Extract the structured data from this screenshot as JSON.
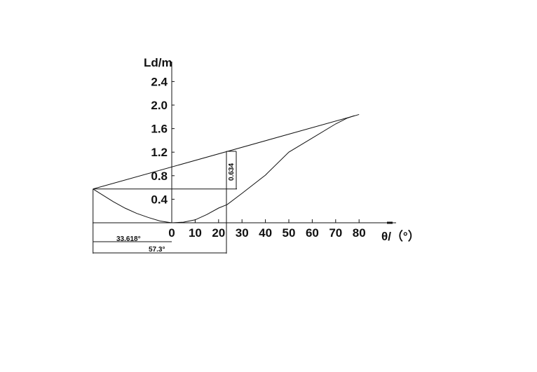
{
  "chart_data": {
    "type": "line",
    "ylabel": "Ld/m",
    "xlabel": "θ/（°）",
    "xlim": [
      -33.618,
      95
    ],
    "ylim": [
      0,
      2.6
    ],
    "x_ticks": [
      "0",
      "10",
      "20",
      "30",
      "40",
      "50",
      "60",
      "70",
      "80"
    ],
    "y_ticks": [
      "0.4",
      "0.8",
      "1.2",
      "1.6",
      "2.0",
      "2.4"
    ],
    "grid": false,
    "series": [
      {
        "x": [
          -33.618,
          -25,
          -20,
          -15,
          -10,
          -5,
          0,
          5,
          10,
          15,
          20,
          23.7,
          30,
          40,
          50,
          60,
          70,
          75,
          78
        ],
        "y": [
          0.574,
          0.36,
          0.25,
          0.16,
          0.09,
          0.03,
          0.0,
          0.01,
          0.05,
          0.14,
          0.25,
          0.31,
          0.5,
          0.81,
          1.2,
          1.44,
          1.68,
          1.78,
          1.82
        ]
      }
    ],
    "tangent_line": {
      "x": [
        -33.618,
        80
      ],
      "y": [
        0.574,
        1.84
      ]
    },
    "annotations": {
      "offset_angle": "33.618°",
      "span_angle": "57.3°",
      "height_diff": "0.634"
    }
  },
  "colors": {
    "line": "#111111",
    "background": "#ffffff"
  }
}
